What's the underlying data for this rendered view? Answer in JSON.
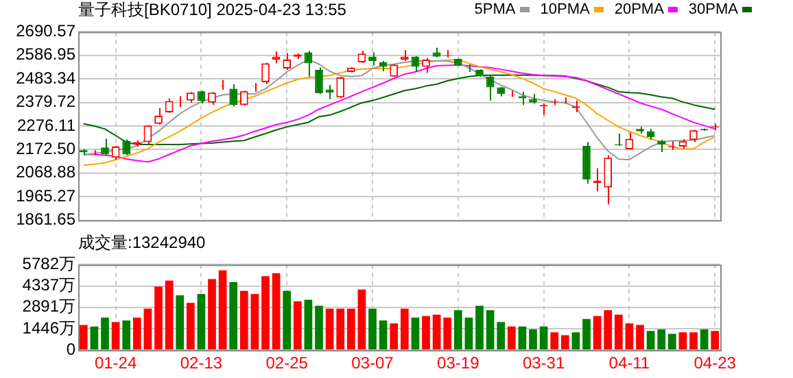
{
  "chart_data": [
    {
      "type": "candlestick",
      "title": "量子科技[BK0710] 2025-04-23 13:55",
      "legend": "top right",
      "grid": true,
      "categories": [
        null,
        null,
        null,
        null,
        null,
        null,
        null,
        null,
        null,
        null,
        null,
        null,
        null,
        null,
        null,
        null,
        null,
        null,
        null,
        null,
        null,
        null,
        null,
        null,
        null,
        null,
        null,
        null,
        null,
        null,
        null,
        null,
        null,
        null,
        null,
        null,
        null,
        null,
        null,
        null,
        null,
        null,
        null,
        null,
        null,
        null,
        null,
        null,
        null,
        null,
        null,
        null,
        null,
        null,
        null,
        null,
        null,
        null,
        null,
        null
      ],
      "ylim": [
        1861.65,
        2690.57
      ],
      "yticks": [
        1861.65,
        1965.27,
        2068.88,
        {
          "value": 2172.5,
          "label": "2172.50"
        },
        2276.11,
        2379.72,
        2483.34,
        2586.95,
        2690.57
      ],
      "ohlc": [
        [
          2170,
          2174,
          2147,
          2160
        ],
        [
          2161,
          2170,
          2147,
          2163
        ],
        [
          2182,
          2220,
          2150,
          2151
        ],
        [
          2137,
          2188,
          2128,
          2186
        ],
        [
          2211,
          2217,
          2148,
          2151
        ],
        [
          2195,
          2213,
          2186,
          2205
        ],
        [
          2205,
          2280,
          2197,
          2278
        ],
        [
          2286,
          2355,
          2282,
          2321
        ],
        [
          2336,
          2398,
          2334,
          2386
        ],
        [
          2386,
          2407,
          2359,
          2388
        ],
        [
          2388,
          2425,
          2379,
          2423
        ],
        [
          2429,
          2431,
          2375,
          2386
        ],
        [
          2379,
          2425,
          2369,
          2423
        ],
        [
          2450,
          2479,
          2436,
          2452
        ],
        [
          2440,
          2460,
          2363,
          2369
        ],
        [
          2369,
          2431,
          2366,
          2429
        ],
        [
          2450,
          2465,
          2427,
          2452
        ],
        [
          2469,
          2554,
          2460,
          2552
        ],
        [
          2568,
          2604,
          2552,
          2581
        ],
        [
          2529,
          2597,
          2523,
          2568
        ],
        [
          2581,
          2595,
          2571,
          2591
        ],
        [
          2600,
          2606,
          2494,
          2552
        ],
        [
          2523,
          2533,
          2417,
          2421
        ],
        [
          2436,
          2456,
          2394,
          2423
        ],
        [
          2402,
          2492,
          2398,
          2490
        ],
        [
          2514,
          2535,
          2512,
          2533
        ],
        [
          2556,
          2606,
          2554,
          2595
        ],
        [
          2581,
          2600,
          2543,
          2562
        ],
        [
          2556,
          2562,
          2517,
          2537
        ],
        [
          2494,
          2548,
          2492,
          2546
        ],
        [
          2568,
          2610,
          2562,
          2581
        ],
        [
          2581,
          2583,
          2514,
          2537
        ],
        [
          2537,
          2575,
          2510,
          2568
        ],
        [
          2600,
          2620,
          2579,
          2581
        ],
        [
          2585,
          2610,
          2577,
          2588
        ],
        [
          2571,
          2573,
          2541,
          2543
        ],
        [
          2531,
          2548,
          2514,
          2529
        ],
        [
          2523,
          2525,
          2494,
          2498
        ],
        [
          2494,
          2498,
          2388,
          2446
        ],
        [
          2446,
          2448,
          2407,
          2417
        ],
        [
          2411,
          2431,
          2404,
          2413
        ],
        [
          2407,
          2427,
          2369,
          2398
        ],
        [
          2394,
          2417,
          2375,
          2379
        ],
        [
          2363,
          2375,
          2325,
          2369
        ],
        [
          2379,
          2394,
          2369,
          2382
        ],
        [
          2381,
          2402,
          2375,
          2383
        ],
        [
          2355,
          2388,
          2336,
          2363
        ],
        [
          2189,
          2205,
          2022,
          2041
        ],
        [
          2025,
          2089,
          1989,
          2035
        ],
        [
          2006,
          2147,
          1931,
          2137
        ],
        [
          2195,
          2243,
          2189,
          2191
        ],
        [
          2174,
          2247,
          2172,
          2220
        ],
        [
          2263,
          2272,
          2243,
          2253
        ],
        [
          2253,
          2263,
          2215,
          2228
        ],
        [
          2211,
          2215,
          2162,
          2195
        ],
        [
          2182,
          2209,
          2170,
          2186
        ],
        [
          2186,
          2218,
          2176,
          2209
        ],
        [
          2215,
          2259,
          2205,
          2257
        ],
        [
          2263,
          2265,
          2255,
          2257
        ],
        [
          2270,
          2286,
          2257,
          2273
        ]
      ],
      "colors": [
        "#008000",
        "#ff0000",
        "#008000",
        "#ff0000",
        "#008000",
        "#ff0000",
        "#ff0000",
        "#ff0000",
        "#ff0000",
        "#ff0000",
        "#ff0000",
        "#008000",
        "#ff0000",
        "#ff0000",
        "#008000",
        "#ff0000",
        "#ff0000",
        "#ff0000",
        "#ff0000",
        "#ff0000",
        "#ff0000",
        "#008000",
        "#008000",
        "#008000",
        "#ff0000",
        "#ff0000",
        "#ff0000",
        "#008000",
        "#008000",
        "#ff0000",
        "#ff0000",
        "#008000",
        "#ff0000",
        "#008000",
        "#ff0000",
        "#008000",
        "#008000",
        "#008000",
        "#008000",
        "#008000",
        "#ff0000",
        "#008000",
        "#008000",
        "#ff0000",
        "#ff0000",
        "#ff0000",
        "#ff0000",
        "#008000",
        "#ff0000",
        "#ff0000",
        "#008000",
        "#ff0000",
        "#008000",
        "#008000",
        "#008000",
        "#ff0000",
        "#ff0000",
        "#ff0000",
        "#008000",
        "#ff0000"
      ],
      "series": [
        {
          "name": "5PMA",
          "type": "line",
          "color": "#999999",
          "values": [
            2151,
            2155,
            2162,
            2170,
            2176,
            2189,
            2220,
            2253,
            2292,
            2330,
            2359,
            2382,
            2398,
            2413,
            2417,
            2417,
            2417,
            2440,
            2475,
            2514,
            2543,
            2568,
            2548,
            2517,
            2498,
            2494,
            2498,
            2529,
            2543,
            2548,
            2556,
            2562,
            2562,
            2562,
            2562,
            2552,
            2533,
            2504,
            2479,
            2456,
            2436,
            2413,
            2398,
            2388,
            2382,
            2378,
            2359,
            2292,
            2224,
            2166,
            2131,
            2128,
            2157,
            2185,
            2205,
            2211,
            2211,
            2214,
            2224,
            2234
          ]
        },
        {
          "name": "10PMA",
          "type": "line",
          "color": "#ffa500",
          "values": [
            2104,
            2108,
            2114,
            2128,
            2143,
            2157,
            2176,
            2205,
            2228,
            2253,
            2282,
            2311,
            2336,
            2359,
            2378,
            2392,
            2407,
            2427,
            2446,
            2465,
            2481,
            2489,
            2494,
            2498,
            2510,
            2521,
            2527,
            2529,
            2529,
            2529,
            2537,
            2546,
            2556,
            2562,
            2566,
            2568,
            2552,
            2537,
            2525,
            2514,
            2502,
            2485,
            2465,
            2440,
            2427,
            2413,
            2398,
            2369,
            2330,
            2301,
            2272,
            2253,
            2234,
            2220,
            2205,
            2185,
            2174,
            2176,
            2205,
            2228
          ]
        },
        {
          "name": "20PMA",
          "type": "line",
          "color": "#ff00ff",
          "values": [
            2151,
            2151,
            2147,
            2143,
            2131,
            2124,
            2118,
            2131,
            2151,
            2170,
            2189,
            2199,
            2209,
            2216,
            2224,
            2236,
            2253,
            2267,
            2282,
            2292,
            2305,
            2324,
            2350,
            2369,
            2388,
            2407,
            2427,
            2446,
            2465,
            2485,
            2504,
            2514,
            2529,
            2541,
            2543,
            2544,
            2541,
            2537,
            2533,
            2525,
            2517,
            2508,
            2502,
            2498,
            2496,
            2494,
            2489,
            2475,
            2456,
            2436,
            2417,
            2398,
            2378,
            2363,
            2350,
            2330,
            2311,
            2292,
            2278,
            2263
          ]
        },
        {
          "name": "30PMA",
          "type": "line",
          "color": "#006400",
          "values": [
            2286,
            2276,
            2263,
            2234,
            2205,
            2195,
            2195,
            2195,
            2195,
            2195,
            2197,
            2199,
            2201,
            2205,
            2209,
            2212,
            2228,
            2243,
            2259,
            2272,
            2282,
            2292,
            2317,
            2324,
            2340,
            2359,
            2378,
            2388,
            2402,
            2417,
            2432,
            2440,
            2452,
            2460,
            2475,
            2485,
            2494,
            2498,
            2500,
            2500,
            2500,
            2500,
            2500,
            2498,
            2498,
            2496,
            2485,
            2475,
            2460,
            2446,
            2427,
            2423,
            2421,
            2413,
            2404,
            2398,
            2382,
            2369,
            2359,
            2350
          ]
        }
      ]
    },
    {
      "type": "bar",
      "title": "成交量:13242940",
      "grid": true,
      "categories": [
        null,
        null,
        null,
        "01-24",
        null,
        null,
        null,
        null,
        null,
        null,
        null,
        "02-13",
        null,
        null,
        null,
        null,
        null,
        null,
        null,
        "02-25",
        null,
        null,
        null,
        null,
        null,
        null,
        null,
        "03-07",
        null,
        null,
        null,
        null,
        null,
        null,
        null,
        "03-19",
        null,
        null,
        null,
        null,
        null,
        null,
        null,
        "03-31",
        null,
        null,
        null,
        null,
        null,
        null,
        null,
        "04-11",
        null,
        null,
        null,
        null,
        null,
        null,
        null,
        "04-23"
      ],
      "ylim": [
        0,
        5782
      ],
      "yticks": [
        0,
        {
          "value": 1446,
          "label": "1446万"
        },
        {
          "value": 2891,
          "label": "2891万"
        },
        {
          "value": 4337,
          "label": "4337万"
        },
        {
          "value": 5782,
          "label": "5782万"
        }
      ],
      "values": [
        1700,
        1600,
        2200,
        1900,
        2000,
        2200,
        2800,
        4300,
        4700,
        3700,
        3200,
        3800,
        4800,
        5400,
        4600,
        4000,
        3800,
        5000,
        5200,
        4000,
        3300,
        3400,
        3000,
        2800,
        2800,
        2800,
        4100,
        2800,
        2000,
        1800,
        2800,
        2200,
        2300,
        2400,
        2200,
        2700,
        2200,
        3000,
        2700,
        1900,
        1600,
        1600,
        1400,
        1600,
        1200,
        1000,
        1200,
        2100,
        2300,
        2700,
        2400,
        1800,
        1700,
        1300,
        1400,
        1100,
        1200,
        1200,
        1400,
        1300
      ],
      "colors": [
        "#ff0000",
        "#008000",
        "#008000",
        "#ff0000",
        "#008000",
        "#ff0000",
        "#ff0000",
        "#ff0000",
        "#ff0000",
        "#008000",
        "#ff0000",
        "#008000",
        "#ff0000",
        "#ff0000",
        "#008000",
        "#ff0000",
        "#ff0000",
        "#ff0000",
        "#ff0000",
        "#008000",
        "#ff0000",
        "#008000",
        "#008000",
        "#ff0000",
        "#ff0000",
        "#ff0000",
        "#ff0000",
        "#008000",
        "#008000",
        "#ff0000",
        "#ff0000",
        "#008000",
        "#ff0000",
        "#ff0000",
        "#ff0000",
        "#008000",
        "#008000",
        "#008000",
        "#008000",
        "#008000",
        "#ff0000",
        "#008000",
        "#008000",
        "#008000",
        "#ff0000",
        "#ff0000",
        "#008000",
        "#008000",
        "#ff0000",
        "#ff0000",
        "#ff0000",
        "#ff0000",
        "#ff0000",
        "#008000",
        "#008000",
        "#008000",
        "#ff0000",
        "#ff0000",
        "#008000",
        "#ff0000"
      ]
    }
  ]
}
